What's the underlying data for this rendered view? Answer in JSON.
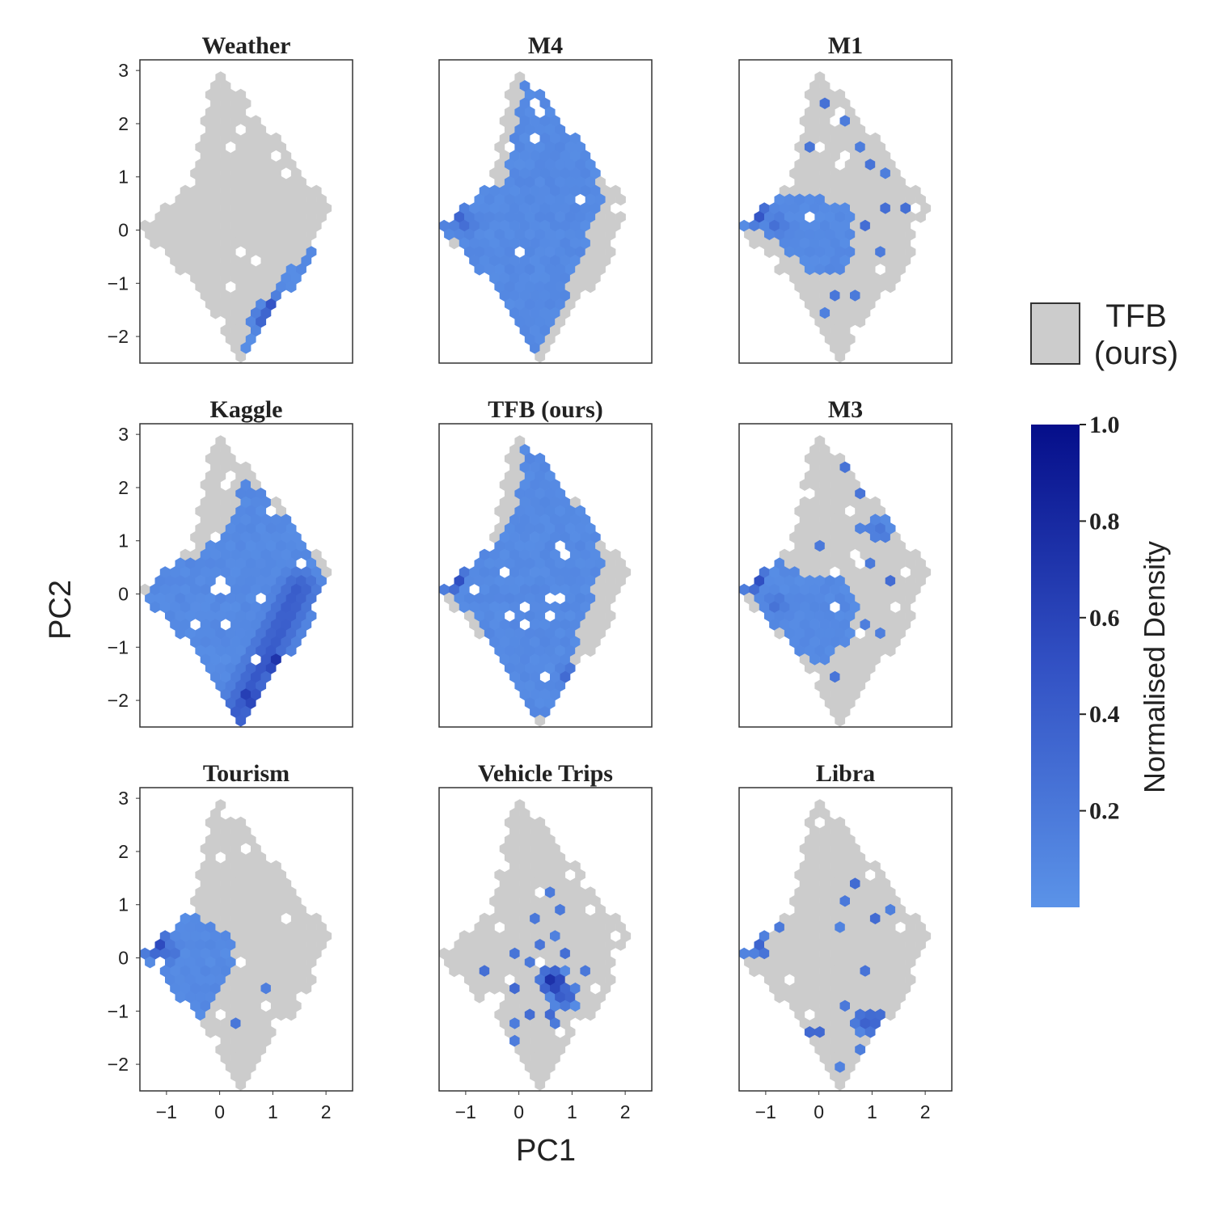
{
  "chart_data": {
    "type": "hexbin",
    "xlabel": "PC1",
    "ylabel": "PC2",
    "xlim": [
      -1.5,
      2.5
    ],
    "ylim": [
      -2.5,
      3.2
    ],
    "x_ticks": [
      {
        "value": -1,
        "label": "−1"
      },
      {
        "value": 0,
        "label": "0"
      },
      {
        "value": 1,
        "label": "1"
      },
      {
        "value": 2,
        "label": "2"
      }
    ],
    "y_ticks": [
      {
        "value": 3,
        "label": "3"
      },
      {
        "value": 2,
        "label": "2"
      },
      {
        "value": 1,
        "label": "1"
      },
      {
        "value": 0,
        "label": "0"
      },
      {
        "value": -1,
        "label": "−1"
      },
      {
        "value": -2,
        "label": "−2"
      }
    ],
    "reference": {
      "name": "TFB (ours)",
      "color": "#cccccc",
      "outline": [
        [
          -0.05,
          3.15
        ],
        [
          0.85,
          2.0
        ],
        [
          2.15,
          0.35
        ],
        [
          1.4,
          -1.0
        ],
        [
          0.35,
          -2.45
        ],
        [
          -0.5,
          -1.0
        ],
        [
          -1.5,
          0.0
        ],
        [
          -0.55,
          0.85
        ],
        [
          -0.3,
          2.0
        ]
      ]
    },
    "colorbar": {
      "label": "Normalised Density",
      "ticks": [
        {
          "value": 0.2,
          "label": "0.2"
        },
        {
          "value": 0.4,
          "label": "0.4"
        },
        {
          "value": 0.6,
          "label": "0.6"
        },
        {
          "value": 0.8,
          "label": "0.8"
        },
        {
          "value": 1.0,
          "label": "1.0"
        }
      ],
      "range": [
        0.0,
        1.0
      ],
      "color_low": "#5b93e8",
      "color_mid": "#3251c4",
      "color_high": "#050e8a"
    },
    "legend": {
      "label_line1": "TFB",
      "label_line2": "(ours)",
      "placement": "right"
    },
    "panels": [
      {
        "title": "Weather",
        "shape": [
          [
            1.0,
            -1.0
          ],
          [
            1.6,
            -0.5
          ],
          [
            2.1,
            0.0
          ],
          [
            1.4,
            -1.2
          ],
          [
            0.65,
            -2.5
          ],
          [
            0.4,
            -2.35
          ],
          [
            0.85,
            -1.4
          ]
        ],
        "hotspots": [
          {
            "x": 1.05,
            "y": -1.5,
            "density": 0.8
          },
          {
            "x": 0.85,
            "y": -1.7,
            "density": 0.45
          }
        ]
      },
      {
        "title": "M4",
        "shape": [
          [
            0.15,
            3.1
          ],
          [
            0.6,
            2.8
          ],
          [
            1.5,
            1.5
          ],
          [
            1.55,
            0.6
          ],
          [
            1.1,
            -0.8
          ],
          [
            0.45,
            -2.05
          ],
          [
            0.35,
            -2.5
          ],
          [
            -0.15,
            -2.5
          ],
          [
            -0.2,
            -1.8
          ],
          [
            -0.6,
            -1.0
          ],
          [
            -1.5,
            0.15
          ],
          [
            -0.75,
            0.85
          ],
          [
            -0.35,
            0.75
          ],
          [
            -0.15,
            1.5
          ]
        ],
        "hotspots": [
          {
            "x": -1.3,
            "y": 0.35,
            "density": 0.95
          },
          {
            "x": -1.0,
            "y": 0.1,
            "density": 0.3
          }
        ]
      },
      {
        "title": "M1",
        "shape": [
          [
            -1.5,
            0.4
          ],
          [
            -0.6,
            0.7
          ],
          [
            -0.1,
            0.6
          ],
          [
            0.5,
            0.5
          ],
          [
            0.7,
            0.0
          ],
          [
            0.5,
            -0.8
          ],
          [
            -0.05,
            -0.9
          ],
          [
            -0.7,
            -0.3
          ]
        ],
        "hotspots": [
          {
            "x": -1.25,
            "y": 0.35,
            "density": 0.95
          },
          {
            "x": -0.8,
            "y": 0.1,
            "density": 0.3
          },
          {
            "x": -0.3,
            "y": -2.3,
            "density": 0.55
          }
        ],
        "scatter": [
          [
            0.15,
            2.3
          ],
          [
            0.55,
            2.5
          ],
          [
            0.5,
            2.0
          ],
          [
            0.75,
            1.6
          ],
          [
            1.3,
            1.8
          ],
          [
            1.0,
            2.0
          ],
          [
            0.9,
            1.2
          ],
          [
            0.3,
            1.5
          ],
          [
            -0.1,
            1.6
          ],
          [
            1.2,
            0.4
          ],
          [
            1.6,
            0.35
          ],
          [
            0.9,
            0.0
          ],
          [
            1.1,
            -0.4
          ],
          [
            0.6,
            -1.2
          ],
          [
            0.3,
            -1.3
          ],
          [
            -0.2,
            -1.3
          ],
          [
            0.1,
            -1.5
          ],
          [
            -0.3,
            -1.9
          ],
          [
            0.8,
            -1.3
          ],
          [
            1.3,
            1.0
          ]
        ]
      },
      {
        "title": "Kaggle",
        "shape": [
          [
            0.45,
            2.3
          ],
          [
            1.0,
            1.7
          ],
          [
            1.65,
            1.1
          ],
          [
            2.0,
            0.3
          ],
          [
            1.2,
            -1.0
          ],
          [
            0.6,
            -2.5
          ],
          [
            -0.15,
            -2.5
          ],
          [
            -0.4,
            -1.6
          ],
          [
            -0.75,
            -0.8
          ],
          [
            -1.4,
            -0.1
          ],
          [
            -1.05,
            0.45
          ],
          [
            -0.4,
            0.75
          ],
          [
            0.15,
            1.25
          ],
          [
            0.3,
            1.7
          ]
        ],
        "ridge": [
          [
            1.5,
            0.1
          ],
          [
            0.3,
            -2.35
          ]
        ],
        "ridge_width": 0.55,
        "hotspots": [
          {
            "x": 1.05,
            "y": -1.3,
            "density": 0.9
          },
          {
            "x": 0.55,
            "y": -1.95,
            "density": 0.85
          }
        ]
      },
      {
        "title": "TFB (ours)",
        "shape": [
          [
            0.15,
            3.1
          ],
          [
            0.6,
            2.6
          ],
          [
            0.85,
            1.9
          ],
          [
            1.5,
            1.2
          ],
          [
            1.55,
            0.5
          ],
          [
            1.1,
            -0.9
          ],
          [
            0.55,
            -2.3
          ],
          [
            -0.05,
            -2.4
          ],
          [
            -0.45,
            -1.6
          ],
          [
            -0.75,
            -0.6
          ],
          [
            -1.45,
            0.2
          ],
          [
            -0.95,
            0.8
          ],
          [
            -0.35,
            0.95
          ],
          [
            -0.1,
            1.5
          ],
          [
            0.05,
            2.3
          ]
        ],
        "hotspots": [
          {
            "x": -1.25,
            "y": 0.3,
            "density": 0.9
          },
          {
            "x": 0.95,
            "y": -1.55,
            "density": 0.4
          }
        ]
      },
      {
        "title": "M3",
        "shape": [
          [
            -1.45,
            0.3
          ],
          [
            -0.8,
            0.6
          ],
          [
            -0.1,
            0.3
          ],
          [
            0.4,
            0.4
          ],
          [
            0.75,
            -0.1
          ],
          [
            0.55,
            -0.9
          ],
          [
            0.0,
            -1.35
          ],
          [
            -0.5,
            -1.0
          ],
          [
            -0.9,
            -0.5
          ]
        ],
        "hotspots": [
          {
            "x": -1.25,
            "y": 0.3,
            "density": 0.9
          },
          {
            "x": -0.8,
            "y": -0.2,
            "density": 0.3
          },
          {
            "x": 1.1,
            "y": 1.2,
            "density": 0.25
          }
        ],
        "scatter": [
          [
            0.6,
            2.7
          ],
          [
            0.7,
            3.0
          ],
          [
            0.5,
            2.4
          ],
          [
            0.9,
            2.3
          ],
          [
            1.2,
            2.0
          ],
          [
            0.8,
            1.8
          ],
          [
            1.4,
            1.5
          ],
          [
            0.3,
            1.5
          ],
          [
            0.8,
            1.2
          ],
          [
            1.3,
            1.0
          ],
          [
            1.0,
            0.6
          ],
          [
            1.3,
            0.2
          ],
          [
            0.9,
            -0.5
          ],
          [
            1.2,
            -0.8
          ],
          [
            0.3,
            -1.5
          ],
          [
            -0.2,
            -1.7
          ],
          [
            -0.3,
            -2.0
          ],
          [
            0.6,
            -1.3
          ],
          [
            0.1,
            0.9
          ],
          [
            0.4,
            2.0
          ]
        ]
      },
      {
        "title": "Tourism",
        "shape": [
          [
            -1.4,
            0.6
          ],
          [
            -0.8,
            1.0
          ],
          [
            -0.4,
            0.7
          ],
          [
            0.3,
            0.4
          ],
          [
            0.3,
            -0.1
          ],
          [
            0.1,
            -0.6
          ],
          [
            -0.55,
            -1.4
          ],
          [
            -0.8,
            -0.9
          ],
          [
            -1.45,
            0.0
          ]
        ],
        "hotspots": [
          {
            "x": -1.25,
            "y": 0.3,
            "density": 0.95
          },
          {
            "x": -0.95,
            "y": 0.1,
            "density": 0.35
          }
        ],
        "scatter": [
          [
            0.5,
            1.6
          ],
          [
            0.9,
            -0.6
          ],
          [
            0.3,
            -1.3
          ],
          [
            -0.4,
            -1.6
          ],
          [
            -0.1,
            -2.3
          ],
          [
            0.05,
            -2.5
          ],
          [
            -0.05,
            -2.1
          ]
        ]
      },
      {
        "title": "Vehicle Trips",
        "hotspots": [
          {
            "x": 0.65,
            "y": -0.45,
            "density": 0.95
          },
          {
            "x": 0.85,
            "y": -0.7,
            "density": 0.55
          }
        ],
        "scatter": [
          [
            0.5,
            -0.3
          ],
          [
            0.8,
            -0.4
          ],
          [
            0.4,
            -0.6
          ],
          [
            0.7,
            -0.8
          ],
          [
            0.9,
            -0.9
          ],
          [
            0.3,
            -0.8
          ],
          [
            0.55,
            -1.1
          ],
          [
            0.2,
            -0.2
          ],
          [
            -0.6,
            -0.2
          ],
          [
            -0.7,
            -0.5
          ],
          [
            -0.1,
            -0.6
          ],
          [
            0.0,
            -1.2
          ],
          [
            -0.1,
            -1.5
          ],
          [
            0.4,
            1.7
          ],
          [
            0.6,
            1.3
          ],
          [
            0.8,
            0.9
          ],
          [
            0.3,
            0.8
          ],
          [
            0.6,
            0.4
          ],
          [
            0.4,
            0.2
          ],
          [
            0.9,
            0.1
          ],
          [
            1.1,
            0.0
          ],
          [
            0.2,
            0.0
          ],
          [
            1.3,
            -0.3
          ],
          [
            0.6,
            -1.2
          ],
          [
            0.2,
            -1.1
          ],
          [
            0.0,
            0.1
          ]
        ]
      },
      {
        "title": "Libra",
        "hotspots": [
          {
            "x": -1.3,
            "y": 0.35,
            "density": 0.95
          },
          {
            "x": 0.95,
            "y": -1.2,
            "density": 0.5
          }
        ],
        "scatter": [
          [
            -1.0,
            0.1
          ],
          [
            -0.7,
            0.5
          ],
          [
            -0.4,
            0.0
          ],
          [
            0.8,
            -1.0
          ],
          [
            1.1,
            -1.0
          ],
          [
            1.0,
            -1.4
          ],
          [
            0.7,
            -1.3
          ],
          [
            1.2,
            -1.3
          ],
          [
            0.7,
            -1.7
          ],
          [
            0.4,
            -1.6
          ],
          [
            0.1,
            -1.4
          ],
          [
            -0.2,
            -1.4
          ],
          [
            0.5,
            -0.9
          ],
          [
            0.3,
            0.3
          ],
          [
            0.4,
            0.6
          ],
          [
            0.6,
            1.4
          ],
          [
            1.0,
            0.8
          ],
          [
            1.6,
            1.7
          ],
          [
            0.9,
            -0.2
          ],
          [
            0.4,
            -2.1
          ],
          [
            -0.1,
            -1.8
          ],
          [
            -0.2,
            -2.3
          ],
          [
            1.3,
            0.9
          ],
          [
            0.55,
            1.0
          ],
          [
            -0.6,
            -0.9
          ]
        ]
      }
    ]
  }
}
